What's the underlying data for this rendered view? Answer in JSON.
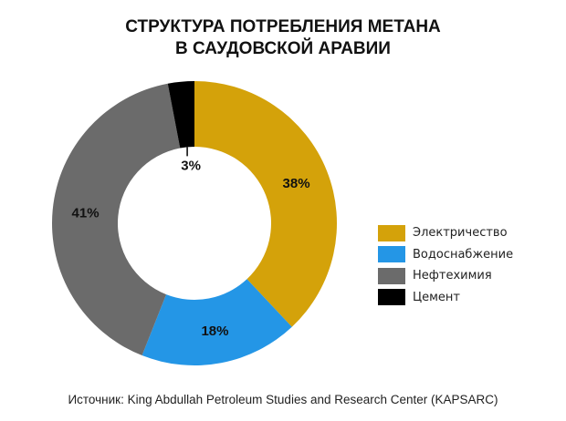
{
  "chart_data": {
    "type": "pie",
    "style": "donut",
    "title_lines": [
      "СТРУКТУРА ПОТРЕБЛЕНИЯ МЕТАНА",
      "В САУДОВСКОЙ АРАВИИ"
    ],
    "categories": [
      "Электричество",
      "Водоснабжение",
      "Нефтехимия",
      "Цемент"
    ],
    "values": [
      38,
      18,
      41,
      3
    ],
    "unit": "%",
    "data_labels": [
      "38%",
      "18%",
      "41%",
      "3%"
    ],
    "colors": [
      "#D4A20A",
      "#2496E6",
      "#6B6B6B",
      "#000000"
    ],
    "legend": {
      "position": "right"
    }
  },
  "source": "Источник: King Abdullah Petroleum Studies  and Research Center (KAPSARC)"
}
